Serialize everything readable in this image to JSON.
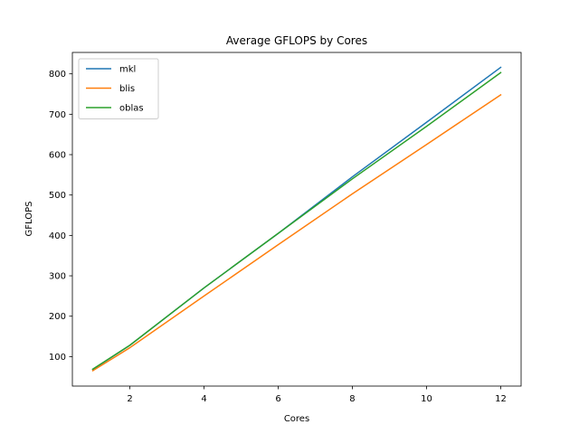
{
  "chart_data": {
    "type": "line",
    "title": "Average GFLOPS by Cores",
    "xlabel": "Cores",
    "ylabel": "GFLOPS",
    "x": [
      1,
      2,
      4,
      6,
      8,
      10,
      12
    ],
    "xticks": [
      2,
      4,
      6,
      8,
      10,
      12
    ],
    "yticks": [
      100,
      200,
      300,
      400,
      500,
      600,
      700,
      800
    ],
    "xlim": [
      0.45,
      12.55
    ],
    "ylim": [
      27,
      853
    ],
    "grid": false,
    "legend_position": "upper-left",
    "series": [
      {
        "name": "mkl",
        "color": "#1f77b4",
        "values": [
          68,
          128,
          270,
          405,
          545,
          680,
          816
        ]
      },
      {
        "name": "blis",
        "color": "#ff7f0e",
        "values": [
          65,
          122,
          250,
          377,
          503,
          625,
          748
        ]
      },
      {
        "name": "oblas",
        "color": "#2ca02c",
        "values": [
          69,
          128,
          270,
          405,
          540,
          670,
          803
        ]
      }
    ]
  }
}
